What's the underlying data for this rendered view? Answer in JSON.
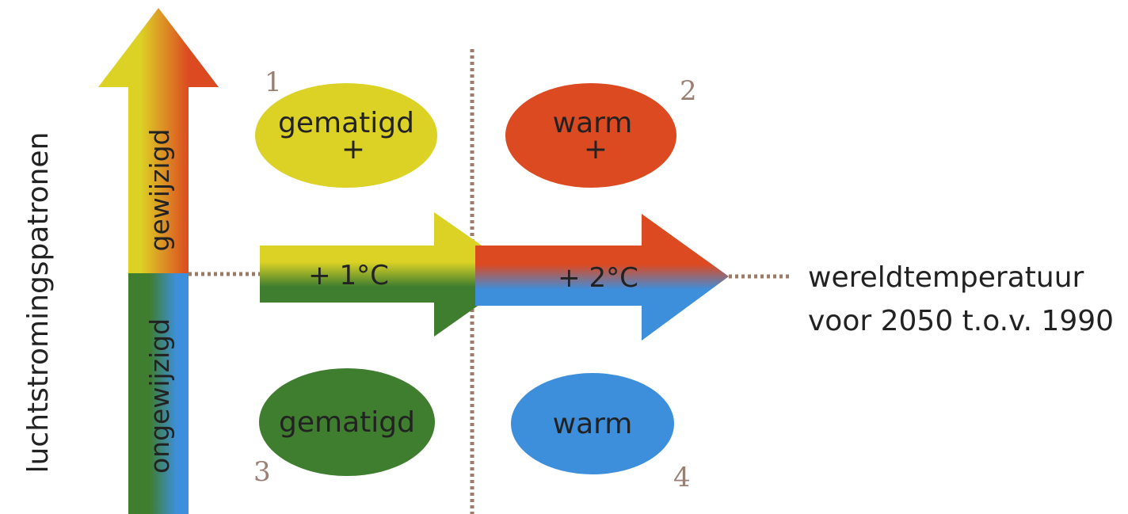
{
  "colors": {
    "yellow": "#dcd225",
    "orange": "#dc4a22",
    "green": "#3f7d2f",
    "blue": "#3d8fdc",
    "dotted": "#9c7b67"
  },
  "y_axis": {
    "label": "luchtstromingspatronen",
    "upper": "gewijzigd",
    "lower": "ongewijzigd"
  },
  "x_axis": {
    "label_line1": "wereldtemperatuur",
    "label_line2": "voor 2050 t.o.v. 1990",
    "arrow1": "+ 1°C",
    "arrow2": "+ 2°C"
  },
  "quadrants": [
    {
      "number": "1",
      "line1": "gematigd",
      "line2": "+"
    },
    {
      "number": "2",
      "line1": "warm",
      "line2": "+"
    },
    {
      "number": "3",
      "line1": "gematigd",
      "line2": ""
    },
    {
      "number": "4",
      "line1": "warm",
      "line2": ""
    }
  ]
}
